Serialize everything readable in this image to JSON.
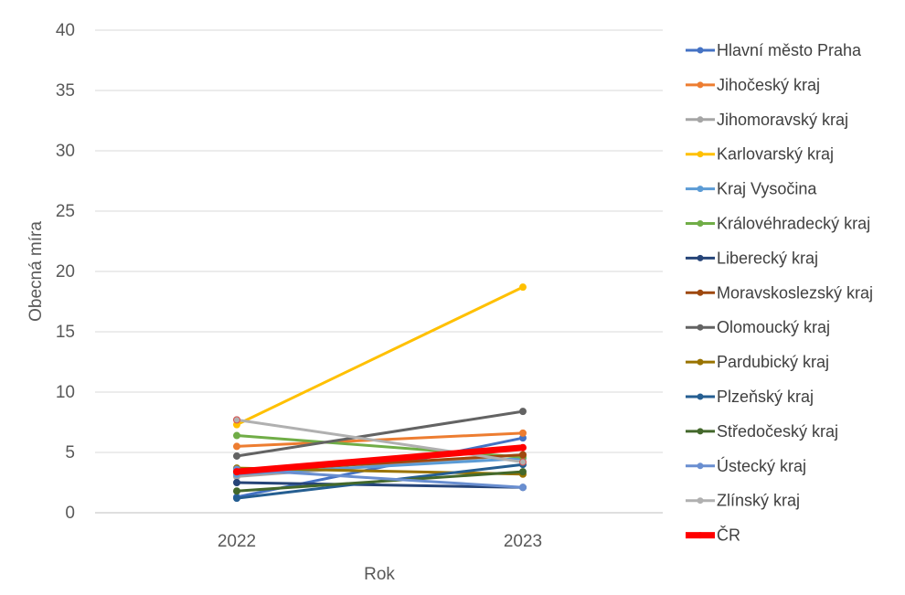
{
  "chart_data": {
    "type": "line",
    "title": "",
    "xlabel": "Rok",
    "ylabel": "Obecná míra",
    "categories": [
      "2022",
      "2023"
    ],
    "ylim": [
      0,
      40
    ],
    "yticks": [
      0,
      5,
      10,
      15,
      20,
      25,
      30,
      35,
      40
    ],
    "grid": "horizontal",
    "legend_position": "right",
    "series": [
      {
        "name": "Hlavní město Praha",
        "values": [
          1.3,
          6.2
        ],
        "color": "#4472C4"
      },
      {
        "name": "Jihočeský kraj",
        "values": [
          5.5,
          6.6
        ],
        "color": "#ED7D31"
      },
      {
        "name": "Jihomoravský kraj",
        "values": [
          3.0,
          4.8
        ],
        "color": "#A5A5A5"
      },
      {
        "name": "Karlovarský kraj",
        "values": [
          7.3,
          18.7
        ],
        "color": "#FFC000"
      },
      {
        "name": "Kraj Vysočina",
        "values": [
          3.2,
          4.5
        ],
        "color": "#5B9BD5"
      },
      {
        "name": "Královéhradecký kraj",
        "values": [
          6.4,
          4.6
        ],
        "color": "#70AD47"
      },
      {
        "name": "Liberecký kraj",
        "values": [
          2.5,
          2.1
        ],
        "color": "#264478"
      },
      {
        "name": "Moravskoslezský kraj",
        "values": [
          3.4,
          4.8
        ],
        "color": "#9E480E"
      },
      {
        "name": "Olomoucký kraj",
        "values": [
          4.7,
          8.4
        ],
        "color": "#636363"
      },
      {
        "name": "Pardubický kraj",
        "values": [
          3.7,
          3.2
        ],
        "color": "#997300"
      },
      {
        "name": "Plzeňský kraj",
        "values": [
          1.2,
          4.0
        ],
        "color": "#255E91"
      },
      {
        "name": "Středočeský kraj",
        "values": [
          1.8,
          3.4
        ],
        "color": "#43682B"
      },
      {
        "name": "Ústecký kraj",
        "values": [
          3.6,
          2.1
        ],
        "color": "#698ED0"
      },
      {
        "name": "Zlínský kraj",
        "values": [
          7.7,
          4.2
        ],
        "color": "#B0B0B0"
      },
      {
        "name": "ČR",
        "values": [
          3.4,
          5.4
        ],
        "color": "#FF0000"
      }
    ]
  }
}
